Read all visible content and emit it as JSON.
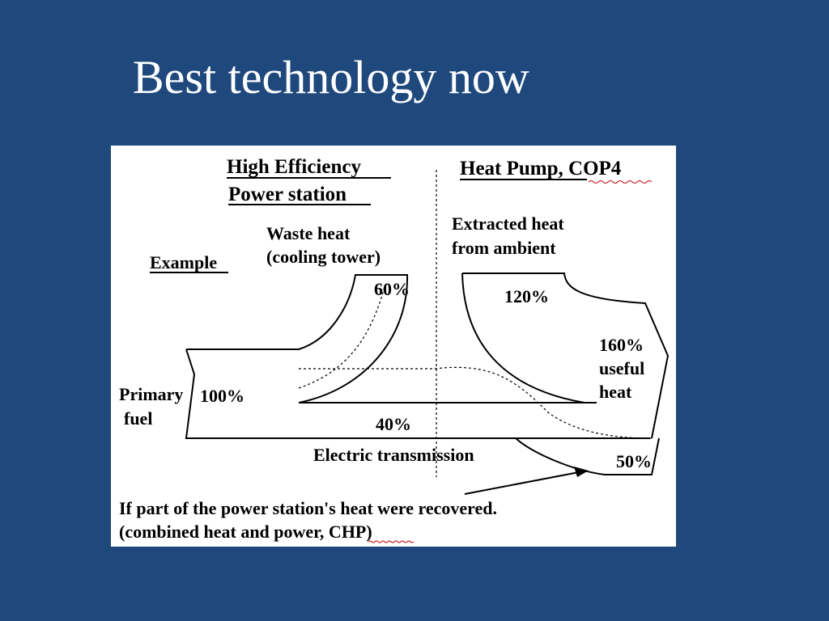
{
  "slide": {
    "title": "Best technology now"
  },
  "diagram": {
    "left_header": [
      "High Efficiency",
      "Power station"
    ],
    "right_header": "Heat Pump, COP4",
    "example_label": "Example",
    "waste_heat_label": [
      "Waste heat",
      "(cooling tower)"
    ],
    "waste_heat_pct": "60%",
    "extracted_label": [
      "Extracted heat",
      "from ambient"
    ],
    "extracted_pct": "120%",
    "useful_heat": [
      "160%",
      "useful",
      "heat"
    ],
    "primary_fuel": [
      "Primary",
      "fuel"
    ],
    "primary_pct": "100%",
    "electric_pct": "40%",
    "transmission_label": "Electric transmission",
    "chp_pct": "50%",
    "chp_note": [
      "If part of the power station's heat were recovered.",
      "(combined heat and power, CHP)"
    ]
  }
}
